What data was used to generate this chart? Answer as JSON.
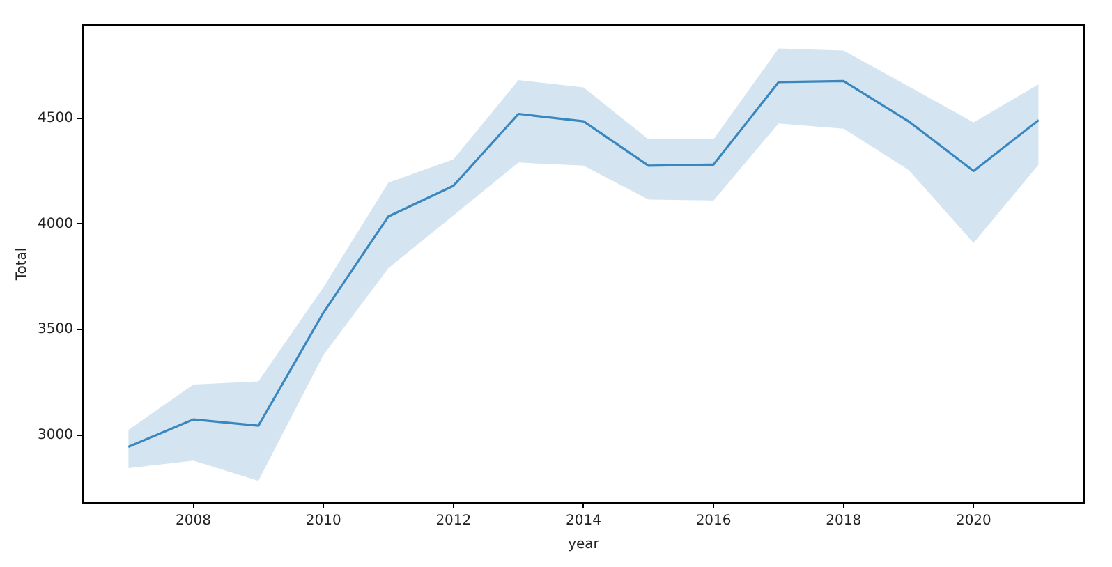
{
  "chart_data": {
    "type": "line",
    "xlabel": "year",
    "ylabel": "Total",
    "x": [
      2007,
      2008,
      2009,
      2010,
      2011,
      2012,
      2013,
      2014,
      2015,
      2016,
      2017,
      2018,
      2019,
      2020,
      2021
    ],
    "series": [
      {
        "color": "#3a87c0",
        "values": [
          2945,
          3075,
          3045,
          3580,
          4035,
          4180,
          4520,
          4485,
          4275,
          4280,
          4670,
          4675,
          4485,
          4250,
          4490
        ],
        "lower": [
          2845,
          2880,
          2785,
          3380,
          3790,
          4040,
          4290,
          4275,
          4115,
          4110,
          4475,
          4450,
          4255,
          3910,
          4280
        ],
        "upper": [
          3025,
          3240,
          3255,
          3700,
          4195,
          4305,
          4680,
          4645,
          4400,
          4400,
          4830,
          4820,
          4650,
          4480,
          4660
        ]
      }
    ],
    "xlim": [
      2006.3,
      2021.7
    ],
    "xticks": [
      2008,
      2010,
      2012,
      2014,
      2016,
      2018,
      2020
    ],
    "ylim": [
      2680,
      4940
    ],
    "yticks": [
      3000,
      3500,
      4000,
      4500
    ],
    "grid": false,
    "legend": false,
    "marker": "none",
    "line_style": "solid"
  }
}
